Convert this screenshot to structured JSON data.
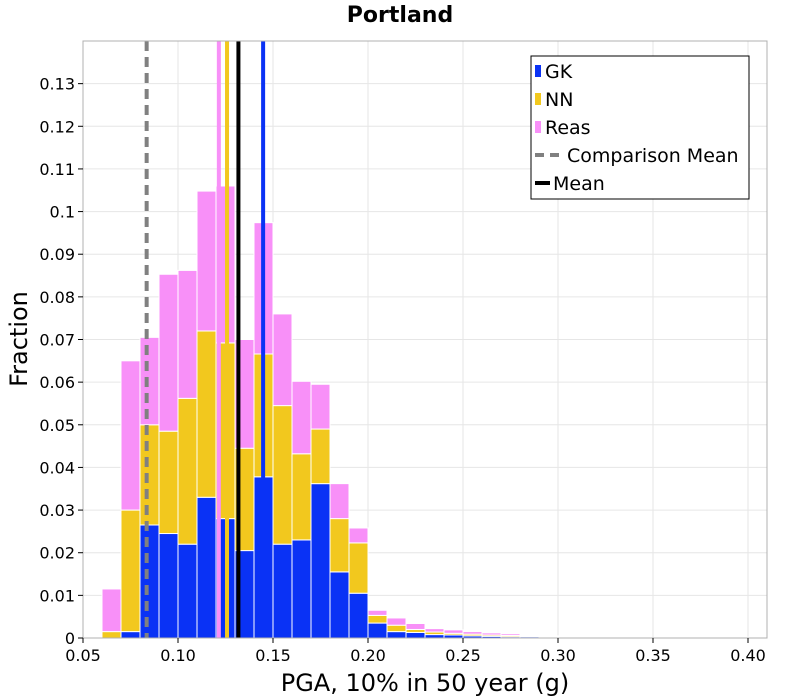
{
  "chart_data": {
    "type": "bar",
    "stacked": true,
    "title": "Portland",
    "xlabel": "PGA, 10% in 50 year (g)",
    "ylabel": "Fraction",
    "xlim": [
      0.05,
      0.41
    ],
    "ylim": [
      0,
      0.14
    ],
    "grid": true,
    "legend_placement": "top-right",
    "bin_width": 0.01,
    "x_ticks": [
      0.05,
      0.1,
      0.15,
      0.2,
      0.25,
      0.3,
      0.35,
      0.4
    ],
    "x_tick_labels": [
      "0.05",
      "0.10",
      "0.15",
      "0.20",
      "0.25",
      "0.30",
      "0.35",
      "0.40"
    ],
    "y_ticks": [
      0,
      0.01,
      0.02,
      0.03,
      0.04,
      0.05,
      0.06,
      0.07,
      0.08,
      0.09,
      0.1,
      0.11,
      0.12,
      0.13
    ],
    "y_tick_labels": [
      "0",
      "0.01",
      "0.02",
      "0.03",
      "0.04",
      "0.05",
      "0.06",
      "0.07",
      "0.08",
      "0.09",
      "0.1",
      "0.11",
      "0.12",
      "0.13"
    ],
    "bin_starts": [
      0.06,
      0.07,
      0.08,
      0.09,
      0.1,
      0.11,
      0.12,
      0.13,
      0.14,
      0.15,
      0.16,
      0.17,
      0.18,
      0.19,
      0.2,
      0.21,
      0.22,
      0.23,
      0.24,
      0.25,
      0.26,
      0.27,
      0.28,
      0.29,
      0.3,
      0.31,
      0.32,
      0.33,
      0.34,
      0.35,
      0.36,
      0.37,
      0.38,
      0.39
    ],
    "series": [
      {
        "name": "GK",
        "color": "#0a32f5",
        "values": [
          0.0,
          0.0015,
          0.0265,
          0.0245,
          0.022,
          0.033,
          0.028,
          0.0205,
          0.0378,
          0.022,
          0.023,
          0.0362,
          0.0155,
          0.0105,
          0.0035,
          0.0015,
          0.0013,
          0.0008,
          0.0007,
          0.0005,
          0.0004,
          0.0003,
          0.0003,
          0.0002,
          0.0002,
          0.0002,
          0.0001,
          0.0001,
          0.0,
          0.0,
          0.0,
          0.0,
          0.0001,
          0.0001
        ]
      },
      {
        "name": "NN",
        "color": "#f2c81e",
        "values": [
          0.0015,
          0.0285,
          0.0235,
          0.024,
          0.0342,
          0.039,
          0.0412,
          0.024,
          0.0288,
          0.0325,
          0.0202,
          0.0128,
          0.0125,
          0.0118,
          0.0018,
          0.0015,
          0.0007,
          0.0006,
          0.0004,
          0.0004,
          0.0003,
          0.0003,
          0.0001,
          0.0001,
          0.0001,
          0.0,
          0.0,
          0.0,
          0.0,
          0.0,
          0.0,
          0.0,
          0.0,
          0.0
        ]
      },
      {
        "name": "Reas",
        "color": "#f890f8",
        "values": [
          0.01,
          0.035,
          0.0205,
          0.0368,
          0.03,
          0.0328,
          0.0368,
          0.0255,
          0.0308,
          0.0215,
          0.017,
          0.0105,
          0.0082,
          0.0035,
          0.0012,
          0.0017,
          0.0014,
          0.0008,
          0.0008,
          0.0006,
          0.0005,
          0.0004,
          0.0002,
          0.0002,
          0.0001,
          0.0001,
          0.0001,
          0.0,
          0.0,
          0.0,
          0.0,
          0.0,
          0.0001,
          0.0001
        ]
      }
    ],
    "mean_lines": [
      {
        "series": "Reas",
        "x": 0.1215,
        "color": "#f890f8"
      },
      {
        "series": "NN",
        "x": 0.1258,
        "color": "#f2c81e"
      },
      {
        "series": "GK",
        "x": 0.1448,
        "color": "#0a32f5"
      },
      {
        "series": "Mean",
        "x": 0.1318,
        "color": "#000000"
      }
    ],
    "comparison_mean": {
      "x": 0.0835,
      "color": "#808080"
    },
    "legend": [
      {
        "label": "GK",
        "kind": "bar",
        "color": "#0a32f5"
      },
      {
        "label": "NN",
        "kind": "bar",
        "color": "#f2c81e"
      },
      {
        "label": "Reas",
        "kind": "bar",
        "color": "#f890f8"
      },
      {
        "label": "Comparison Mean",
        "kind": "dashed",
        "color": "#808080"
      },
      {
        "label": "Mean",
        "kind": "line",
        "color": "#000000"
      }
    ]
  }
}
